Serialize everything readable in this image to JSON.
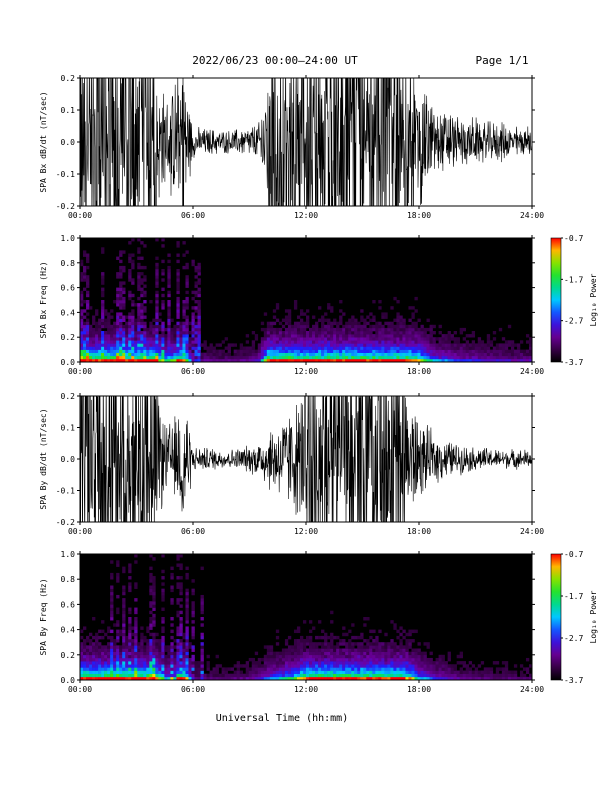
{
  "header": {
    "title": "2022/06/23  00:00—24:00 UT",
    "page": "Page 1/1"
  },
  "x_axis_title": "Universal Time (hh:mm)",
  "chart_data": [
    {
      "type": "line",
      "panel": "bx_waveform",
      "ylabel": "SPA Bx dB/dt (nT/sec)",
      "xlim": [
        0,
        24
      ],
      "ylim": [
        -0.2,
        0.2
      ],
      "xticks": [
        "00:00",
        "06:00",
        "12:00",
        "18:00",
        "24:00"
      ],
      "yticks": [
        "-0.2",
        "-0.1",
        "0.0",
        "0.1",
        "0.2"
      ],
      "envelope": {
        "x": [
          0,
          0.5,
          1,
          1.5,
          2,
          2.5,
          3,
          3.5,
          4,
          4.5,
          5,
          5.5,
          6,
          6.5,
          7,
          7.5,
          8,
          8.5,
          9,
          9.5,
          10,
          10.5,
          11,
          11.5,
          12,
          12.5,
          13,
          13.5,
          14,
          14.5,
          15,
          15.5,
          16,
          16.5,
          17,
          17.5,
          18,
          18.5,
          19,
          19.5,
          20,
          20.5,
          21,
          21.5,
          22,
          22.5,
          23,
          23.5,
          24
        ],
        "amplitude": [
          0.2,
          0.2,
          0.2,
          0.2,
          0.2,
          0.2,
          0.2,
          0.2,
          0.2,
          0.12,
          0.15,
          0.2,
          0.04,
          0.035,
          0.035,
          0.03,
          0.03,
          0.035,
          0.04,
          0.05,
          0.2,
          0.2,
          0.2,
          0.2,
          0.2,
          0.2,
          0.2,
          0.2,
          0.2,
          0.2,
          0.2,
          0.2,
          0.2,
          0.2,
          0.2,
          0.2,
          0.18,
          0.12,
          0.09,
          0.08,
          0.07,
          0.06,
          0.06,
          0.05,
          0.05,
          0.05,
          0.04,
          0.04,
          0.04
        ]
      }
    },
    {
      "type": "heatmap",
      "panel": "bx_spectrogram",
      "ylabel": "SPA Bx Freq (Hz)",
      "xlim": [
        0,
        24
      ],
      "ylim": [
        0,
        1.0
      ],
      "xticks": [
        "00:00",
        "06:00",
        "12:00",
        "18:00",
        "24:00"
      ],
      "yticks": [
        "0.0",
        "0.2",
        "0.4",
        "0.6",
        "0.8",
        "1.0"
      ],
      "colorbar": {
        "label": "Log₁₀ Power",
        "range": [
          -3.7,
          -0.7
        ],
        "ticks": [
          "-0.7",
          "-1.7",
          "-2.7",
          "-3.7"
        ]
      }
    },
    {
      "type": "line",
      "panel": "by_waveform",
      "ylabel": "SPA By dB/dt (nT/sec)",
      "xlim": [
        0,
        24
      ],
      "ylim": [
        -0.2,
        0.2
      ],
      "xticks": [
        "00:00",
        "06:00",
        "12:00",
        "18:00",
        "24:00"
      ],
      "yticks": [
        "-0.2",
        "-0.1",
        "0.0",
        "0.1",
        "0.2"
      ],
      "envelope": {
        "x": [
          0,
          0.5,
          1,
          1.5,
          2,
          2.5,
          3,
          3.5,
          4,
          4.5,
          5,
          5.5,
          6,
          6.5,
          7,
          7.5,
          8,
          8.5,
          9,
          9.5,
          10,
          10.5,
          11,
          11.5,
          12,
          12.5,
          13,
          13.5,
          14,
          14.5,
          15,
          15.5,
          16,
          16.5,
          17,
          17.5,
          18,
          18.5,
          19,
          19.5,
          20,
          20.5,
          21,
          21.5,
          22,
          22.5,
          23,
          23.5,
          24
        ],
        "amplitude": [
          0.2,
          0.2,
          0.2,
          0.2,
          0.2,
          0.2,
          0.2,
          0.2,
          0.2,
          0.09,
          0.1,
          0.2,
          0.03,
          0.03,
          0.03,
          0.025,
          0.025,
          0.03,
          0.035,
          0.05,
          0.08,
          0.1,
          0.12,
          0.15,
          0.2,
          0.2,
          0.2,
          0.2,
          0.2,
          0.2,
          0.2,
          0.2,
          0.2,
          0.2,
          0.2,
          0.18,
          0.1,
          0.08,
          0.06,
          0.05,
          0.04,
          0.035,
          0.03,
          0.03,
          0.025,
          0.025,
          0.025,
          0.025,
          0.025
        ]
      }
    },
    {
      "type": "heatmap",
      "panel": "by_spectrogram",
      "ylabel": "SPA By Freq (Hz)",
      "xlim": [
        0,
        24
      ],
      "ylim": [
        0,
        1.0
      ],
      "xticks": [
        "00:00",
        "06:00",
        "12:00",
        "18:00",
        "24:00"
      ],
      "yticks": [
        "0.0",
        "0.2",
        "0.4",
        "0.6",
        "0.8",
        "1.0"
      ],
      "colorbar": {
        "label": "Log₁₀ Power",
        "range": [
          -3.7,
          -0.7
        ],
        "ticks": [
          "-0.7",
          "-1.7",
          "-2.7",
          "-3.7"
        ]
      }
    }
  ],
  "colors": {
    "waveform": "#000000",
    "background": "#ffffff"
  }
}
